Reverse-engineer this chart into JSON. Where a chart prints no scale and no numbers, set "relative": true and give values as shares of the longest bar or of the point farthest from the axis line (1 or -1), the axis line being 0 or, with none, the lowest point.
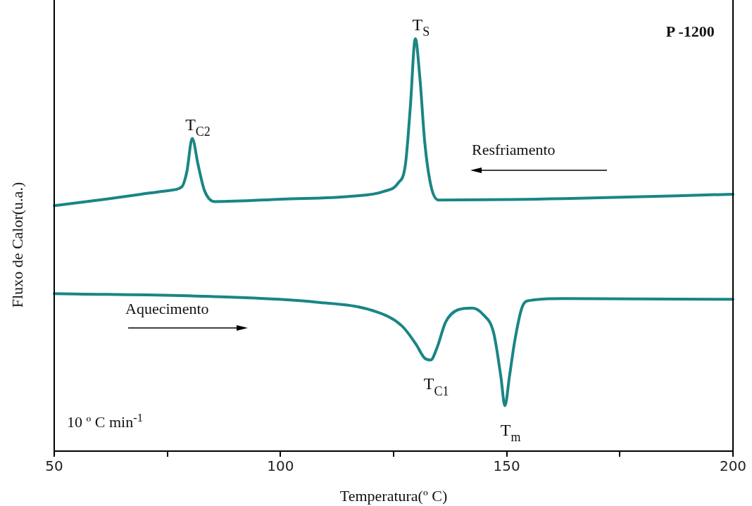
{
  "chart_data": {
    "type": "line",
    "relative": true,
    "xlabel": "Temperatura(º C)",
    "ylabel": "Fluxo de Calor(u.a.)",
    "xlim": [
      50,
      200
    ],
    "xticks": [
      50,
      {
        "value": 75,
        "label": null
      },
      100,
      {
        "value": 125,
        "label": null
      },
      150,
      {
        "value": 175,
        "label": null
      },
      200
    ],
    "marker": "none",
    "legend": false,
    "series": [
      {
        "color": "#1a8585",
        "x": [
          50,
          61.4,
          69.2,
          75.4,
          78.2,
          79.3,
          80.5,
          81.8,
          83.2,
          85.5,
          100.3,
          115.9,
          122.9,
          126.0,
          127.6,
          128.7,
          129.8,
          130.8,
          131.9,
          133.3,
          134.9,
          162.6,
          200
        ],
        "values": [
          0.595,
          0.611,
          0.623,
          0.632,
          0.641,
          0.677,
          0.758,
          0.694,
          0.632,
          0.605,
          0.611,
          0.618,
          0.63,
          0.65,
          0.694,
          0.835,
          1.0,
          0.906,
          0.747,
          0.641,
          0.609,
          0.612,
          0.623
        ]
      },
      {
        "color": "#1a8585",
        "x": [
          50,
          84.7,
          108.1,
          120.6,
          126.8,
          129.9,
          131.9,
          133.2,
          134.6,
          136.5,
          139.3,
          142.4,
          144.8,
          147.1,
          148.7,
          149.6,
          150.6,
          151.8,
          153.4,
          154.9,
          162.6,
          200
        ],
        "values": [
          0.382,
          0.375,
          0.361,
          0.34,
          0.304,
          0.26,
          0.225,
          0.221,
          0.251,
          0.313,
          0.343,
          0.347,
          0.331,
          0.287,
          0.181,
          0.11,
          0.181,
          0.269,
          0.349,
          0.365,
          0.37,
          0.368
        ]
      }
    ],
    "annotations": [
      {
        "text": "T$_{C2}$",
        "x": 80.5,
        "y": 0.758
      },
      {
        "text": "T$_{S}$",
        "x": 129.8,
        "y": 1.0
      },
      {
        "text": "T$_{C1}$",
        "x": 133.2,
        "y": 0.221
      },
      {
        "text": "T$_{m}$",
        "x": 149.6,
        "y": 0.11
      },
      "Resfriamento",
      "Aquecimento",
      "10 º C min$^{-1}$",
      "P -1200"
    ]
  }
}
